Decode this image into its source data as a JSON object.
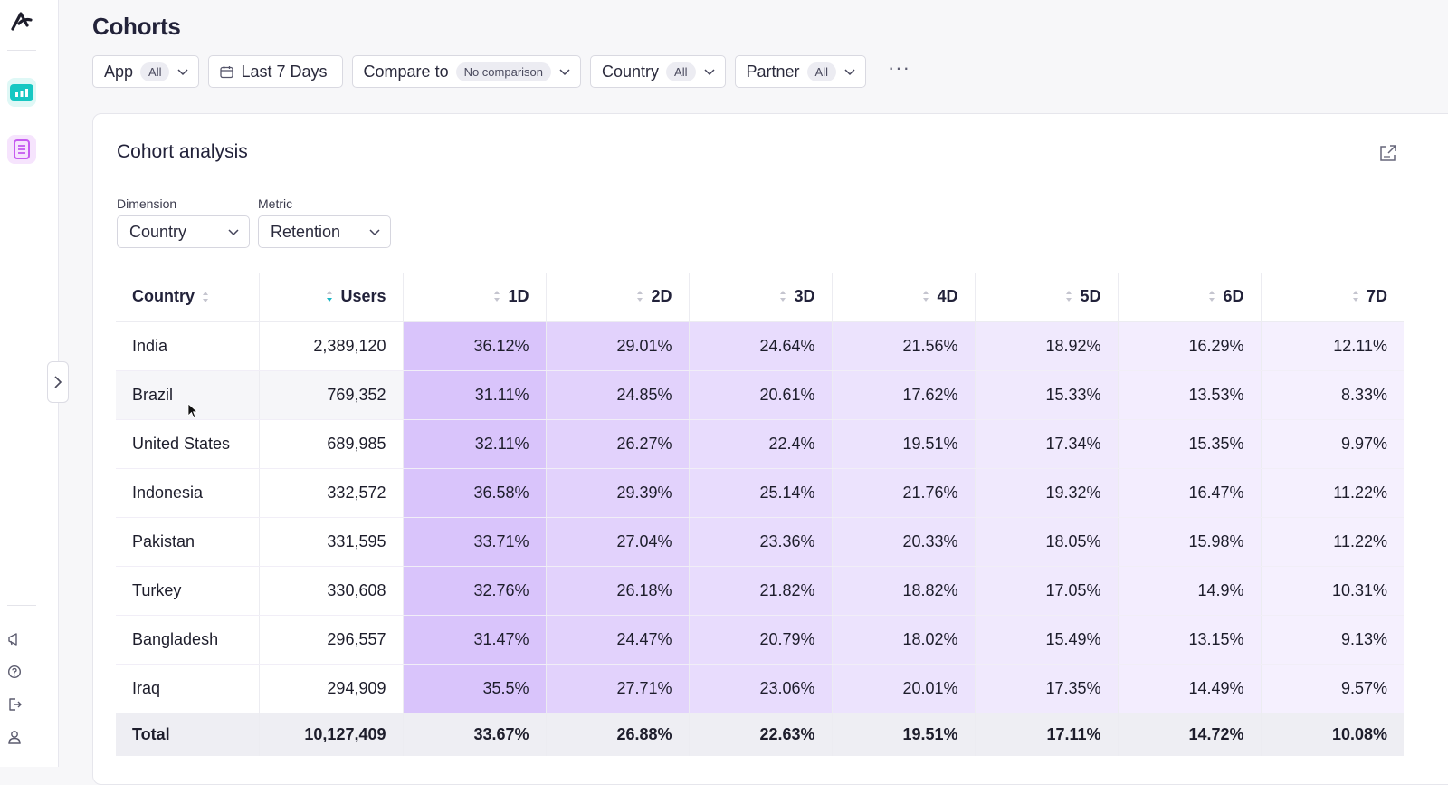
{
  "page": {
    "title": "Cohorts"
  },
  "filters": [
    {
      "label": "App",
      "pill": "All"
    },
    {
      "label": "Last 7 Days",
      "pill": null
    },
    {
      "label": "Compare to",
      "pill": "No comparison"
    },
    {
      "label": "Country",
      "pill": "All"
    },
    {
      "label": "Partner",
      "pill": "All"
    }
  ],
  "more_label": "···",
  "card": {
    "title": "Cohort analysis",
    "dimension_label": "Dimension",
    "dimension_value": "Country",
    "metric_label": "Metric",
    "metric_value": "Retention"
  },
  "table": {
    "headers": [
      "Country",
      "Users",
      "1D",
      "2D",
      "3D",
      "4D",
      "5D",
      "6D",
      "7D"
    ],
    "rows": [
      {
        "country": "India",
        "users": "2,389,120",
        "days": [
          "36.12%",
          "29.01%",
          "24.64%",
          "21.56%",
          "18.92%",
          "16.29%",
          "12.11%"
        ]
      },
      {
        "country": "Brazil",
        "users": "769,352",
        "days": [
          "31.11%",
          "24.85%",
          "20.61%",
          "17.62%",
          "15.33%",
          "13.53%",
          "8.33%"
        ]
      },
      {
        "country": "United States",
        "users": "689,985",
        "days": [
          "32.11%",
          "26.27%",
          "22.4%",
          "19.51%",
          "17.34%",
          "15.35%",
          "9.97%"
        ]
      },
      {
        "country": "Indonesia",
        "users": "332,572",
        "days": [
          "36.58%",
          "29.39%",
          "25.14%",
          "21.76%",
          "19.32%",
          "16.47%",
          "11.22%"
        ]
      },
      {
        "country": "Pakistan",
        "users": "331,595",
        "days": [
          "33.71%",
          "27.04%",
          "23.36%",
          "20.33%",
          "18.05%",
          "15.98%",
          "11.22%"
        ]
      },
      {
        "country": "Turkey",
        "users": "330,608",
        "days": [
          "32.76%",
          "26.18%",
          "21.82%",
          "18.82%",
          "17.05%",
          "14.9%",
          "10.31%"
        ]
      },
      {
        "country": "Bangladesh",
        "users": "296,557",
        "days": [
          "31.47%",
          "24.47%",
          "20.79%",
          "18.02%",
          "15.49%",
          "13.15%",
          "9.13%"
        ]
      },
      {
        "country": "Iraq",
        "users": "294,909",
        "days": [
          "35.5%",
          "27.71%",
          "23.06%",
          "20.01%",
          "17.35%",
          "14.49%",
          "9.57%"
        ]
      }
    ],
    "total": {
      "label": "Total",
      "users": "10,127,409",
      "days": [
        "33.67%",
        "26.88%",
        "22.63%",
        "19.51%",
        "17.11%",
        "14.72%",
        "10.08%"
      ]
    },
    "highlighted_row": 1
  },
  "colors": {
    "heat_day1": "#d9c4fb",
    "heat_day2": "#e2d2fc",
    "heat_day3": "#e8dcfd",
    "heat_day4": "#ece3fd",
    "heat_day5": "#f0e9fd",
    "heat_day6": "#f3edfe",
    "heat_day7": "#f5f0fe",
    "accent_teal": "#17c7c2",
    "accent_purple": "#c65cf0"
  }
}
